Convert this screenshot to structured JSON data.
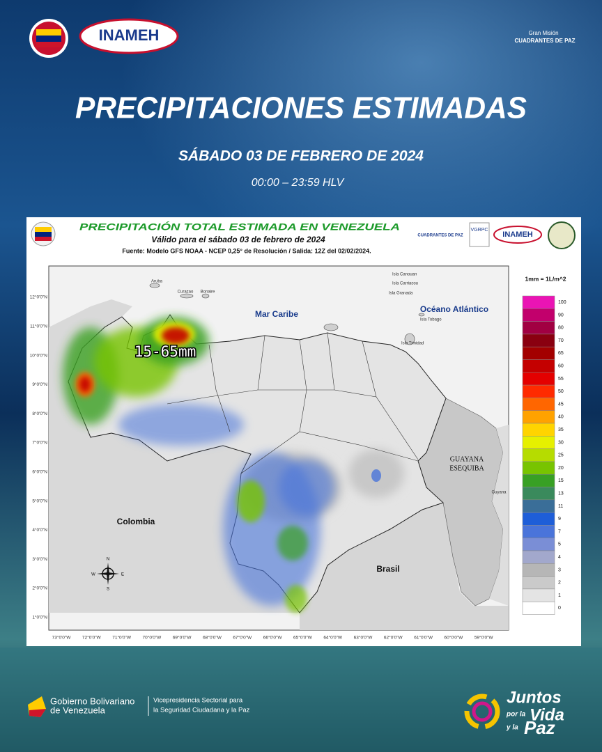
{
  "header": {
    "title": "PRECIPITACIONES ESTIMADAS",
    "date": "SÁBADO 03 DE FEBRERO DE 2024",
    "time": "00:00 – 23:59 HLV",
    "inameh_logo": "INAMEH",
    "cuadrantes_top": "Gran Misión",
    "cuadrantes_bottom": "CUADRANTES DE PAZ"
  },
  "map": {
    "title": "PRECIPITACIÓN TOTAL ESTIMADA EN VENEZUELA",
    "subtitle": "Válido para el sábado 03 de febrero de 2024",
    "source": "Fuente: Modelo GFS NOAA - NCEP 0,25° de Resolución / Salida: 12Z del 02/02/2024.",
    "logos": {
      "vgrpc": "VGRPC",
      "inameh": "INAMEH",
      "cuadrantes": "CUADRANTES DE PAZ"
    },
    "places": {
      "caribbean": "Mar Caribe",
      "atlantic": "Océano Atlántico",
      "colombia": "Colombia",
      "brasil": "Brasil",
      "guayana_1": "GUAYANA",
      "guayana_2": "ESEQUIBA",
      "guyana": "Guyana",
      "aruba": "Aruba",
      "curazao": "Curazao",
      "bonaire": "Bonaire",
      "canouan": "Isla Canouan",
      "carriacou": "Isla Carriacou",
      "granada": "Isla Granada",
      "tobago": "Isla Tobago",
      "trinidad": "Isla Trinidad"
    },
    "annotation": "15-65mm",
    "lat_labels": [
      "12°0'0\"N",
      "11°0'0\"N",
      "10°0'0\"N",
      "9°0'0\"N",
      "8°0'0\"N",
      "7°0'0\"N",
      "6°0'0\"N",
      "5°0'0\"N",
      "4°0'0\"N",
      "3°0'0\"N",
      "2°0'0\"N",
      "1°0'0\"N"
    ],
    "lon_labels": [
      "73°0'0\"W",
      "72°0'0\"W",
      "71°0'0\"W",
      "70°0'0\"W",
      "69°0'0\"W",
      "68°0'0\"W",
      "67°0'0\"W",
      "66°0'0\"W",
      "65°0'0\"W",
      "64°0'0\"W",
      "63°0'0\"W",
      "62°0'0\"W",
      "61°0'0\"W",
      "60°0'0\"W",
      "59°0'0\"W"
    ],
    "compass": {
      "n": "N",
      "s": "S",
      "e": "E",
      "w": "W"
    },
    "legend": {
      "title": "1mm = 1L/m^2",
      "levels": [
        {
          "value": 100,
          "color": "#ea14b4"
        },
        {
          "value": 90,
          "color": "#c2006c"
        },
        {
          "value": 80,
          "color": "#a10042"
        },
        {
          "value": 70,
          "color": "#8a0010"
        },
        {
          "value": 65,
          "color": "#a30000"
        },
        {
          "value": 60,
          "color": "#c40000"
        },
        {
          "value": 55,
          "color": "#e40000"
        },
        {
          "value": 50,
          "color": "#ff2a00"
        },
        {
          "value": 45,
          "color": "#ff6600"
        },
        {
          "value": 40,
          "color": "#ffa200"
        },
        {
          "value": 35,
          "color": "#ffd400"
        },
        {
          "value": 30,
          "color": "#e6f000"
        },
        {
          "value": 25,
          "color": "#b6dc00"
        },
        {
          "value": 20,
          "color": "#78c400"
        },
        {
          "value": 15,
          "color": "#38a024"
        },
        {
          "value": 13,
          "color": "#3a8a5c"
        },
        {
          "value": 11,
          "color": "#3a6e98"
        },
        {
          "value": 9,
          "color": "#1e5ed8"
        },
        {
          "value": 7,
          "color": "#4a74da"
        },
        {
          "value": 5,
          "color": "#7a8ed6"
        },
        {
          "value": 4,
          "color": "#a2a8cc"
        },
        {
          "value": 3,
          "color": "#b6b6b6"
        },
        {
          "value": 2,
          "color": "#cacaca"
        },
        {
          "value": 1,
          "color": "#e4e4e4"
        },
        {
          "value": 0,
          "color": "#ffffff"
        }
      ]
    }
  },
  "footer": {
    "gob_1": "Gobierno Bolivariano",
    "gob_2": "de Venezuela",
    "vice_1": "Vicepresidencia Sectorial para",
    "vice_2": "la Seguridad Ciudadana y la Paz",
    "juntos_1": "Juntos",
    "juntos_2": "por la",
    "juntos_3": "Vida",
    "juntos_4": "y la",
    "juntos_5": "Paz"
  }
}
